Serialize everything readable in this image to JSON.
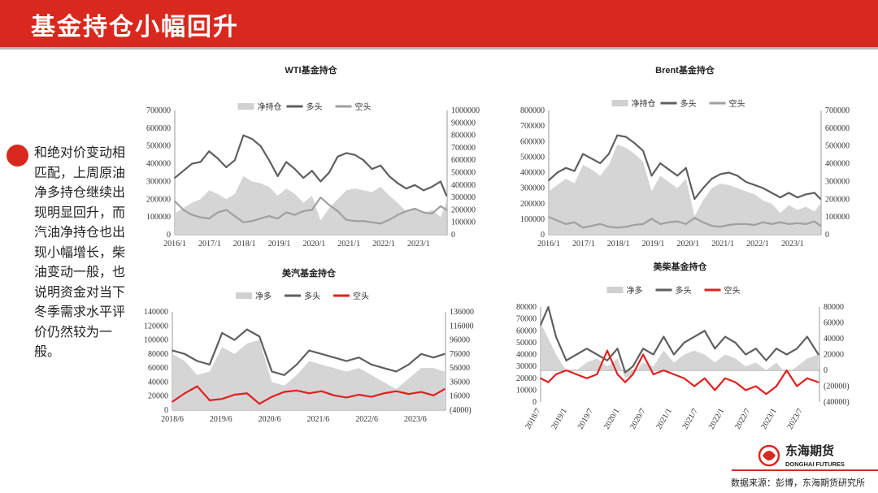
{
  "header": {
    "title": "基金持仓小幅回升"
  },
  "body": {
    "text": "和绝对价变动相匹配，上周原油净多持仓继续出现明显回升，而汽油净持仓也出现小幅增长，柴油变动一般，也说明资金对当下冬季需求水平评价仍然较为一般。"
  },
  "footer": {
    "source": "数据来源：彭博，东海期货研究所",
    "logo_cn": "东海期货",
    "logo_en": "DONGHAI FUTURES"
  },
  "colors": {
    "brand_red": "#d9281e",
    "net": "#d0d0d0",
    "long": "#5f5f5f",
    "short_gray": "#a0a0a0",
    "short_red": "#e02020"
  },
  "chart_data": [
    {
      "id": "wti",
      "type": "line",
      "title": "WTI基金持仓",
      "legend": [
        "净持仓",
        "多头",
        "空头"
      ],
      "x_ticks": [
        "2016/1",
        "2017/1",
        "2018/1",
        "2019/1",
        "2020/1",
        "2021/1",
        "2022/1",
        "2023/1"
      ],
      "x": [
        2016.0,
        2016.25,
        2016.5,
        2016.75,
        2017.0,
        2017.25,
        2017.5,
        2017.75,
        2018.0,
        2018.25,
        2018.5,
        2018.75,
        2019.0,
        2019.25,
        2019.5,
        2019.75,
        2020.0,
        2020.25,
        2020.5,
        2020.75,
        2021.0,
        2021.25,
        2021.5,
        2021.75,
        2022.0,
        2022.25,
        2022.5,
        2022.75,
        2023.0,
        2023.25,
        2023.5,
        2023.75,
        2023.92
      ],
      "ylim_left": [
        0,
        700000
      ],
      "yticks_left": [
        "0",
        "100000",
        "200000",
        "300000",
        "400000",
        "500000",
        "600000",
        "700000"
      ],
      "ylim_right": [
        0,
        1000000
      ],
      "yticks_right": [
        "0",
        "100000",
        "200000",
        "300000",
        "400000",
        "500000",
        "600000",
        "700000",
        "800000",
        "900000",
        "1000000"
      ],
      "series": [
        {
          "name": "净持仓",
          "kind": "area",
          "axis": "left",
          "values": [
            120000,
            150000,
            180000,
            200000,
            250000,
            230000,
            200000,
            230000,
            330000,
            300000,
            290000,
            270000,
            220000,
            260000,
            230000,
            180000,
            220000,
            80000,
            150000,
            200000,
            250000,
            260000,
            250000,
            240000,
            270000,
            220000,
            180000,
            130000,
            150000,
            120000,
            140000,
            100000,
            180000
          ]
        },
        {
          "name": "多头",
          "kind": "line",
          "axis": "left",
          "values": [
            320000,
            360000,
            400000,
            410000,
            470000,
            430000,
            380000,
            420000,
            560000,
            540000,
            500000,
            420000,
            330000,
            410000,
            370000,
            320000,
            360000,
            300000,
            350000,
            440000,
            460000,
            450000,
            420000,
            370000,
            390000,
            330000,
            290000,
            260000,
            280000,
            250000,
            270000,
            300000,
            220000
          ]
        },
        {
          "name": "空头",
          "kind": "line",
          "axis": "right",
          "values": [
            270000,
            200000,
            160000,
            140000,
            130000,
            180000,
            200000,
            150000,
            100000,
            110000,
            130000,
            150000,
            130000,
            180000,
            160000,
            190000,
            200000,
            300000,
            240000,
            190000,
            120000,
            110000,
            110000,
            100000,
            90000,
            120000,
            160000,
            190000,
            210000,
            180000,
            170000,
            230000,
            200000
          ]
        }
      ]
    },
    {
      "id": "brent",
      "type": "line",
      "title": "Brent基金持仓",
      "legend": [
        "净持仓",
        "多头",
        "空头"
      ],
      "x_ticks": [
        "2016/1",
        "2017/1",
        "2018/1",
        "2019/1",
        "2020/1",
        "2021/1",
        "2022/1",
        "2023/1"
      ],
      "x": [
        2016.0,
        2016.25,
        2016.5,
        2016.75,
        2017.0,
        2017.25,
        2017.5,
        2017.75,
        2018.0,
        2018.25,
        2018.5,
        2018.75,
        2019.0,
        2019.25,
        2019.5,
        2019.75,
        2020.0,
        2020.25,
        2020.5,
        2020.75,
        2021.0,
        2021.25,
        2021.5,
        2021.75,
        2022.0,
        2022.25,
        2022.5,
        2022.75,
        2023.0,
        2023.25,
        2023.5,
        2023.75,
        2023.92
      ],
      "ylim_left": [
        0,
        800000
      ],
      "yticks_left": [
        "0",
        "100000",
        "200000",
        "300000",
        "400000",
        "500000",
        "600000",
        "700000",
        "800000"
      ],
      "ylim_right": [
        0,
        700000
      ],
      "yticks_right": [
        "0",
        "100000",
        "200000",
        "300000",
        "400000",
        "500000",
        "600000",
        "700000"
      ],
      "series": [
        {
          "name": "净持仓",
          "kind": "area",
          "axis": "left",
          "values": [
            280000,
            320000,
            360000,
            330000,
            450000,
            420000,
            380000,
            450000,
            580000,
            560000,
            520000,
            470000,
            280000,
            380000,
            340000,
            300000,
            360000,
            120000,
            220000,
            300000,
            330000,
            320000,
            300000,
            280000,
            260000,
            220000,
            200000,
            140000,
            190000,
            160000,
            180000,
            150000,
            200000
          ]
        },
        {
          "name": "多头",
          "kind": "line",
          "axis": "left",
          "values": [
            350000,
            400000,
            430000,
            410000,
            520000,
            490000,
            460000,
            520000,
            640000,
            630000,
            590000,
            540000,
            380000,
            460000,
            420000,
            380000,
            430000,
            230000,
            300000,
            360000,
            390000,
            400000,
            380000,
            340000,
            320000,
            300000,
            270000,
            240000,
            270000,
            240000,
            260000,
            270000,
            230000
          ]
        },
        {
          "name": "空头",
          "kind": "line",
          "axis": "right",
          "values": [
            100000,
            80000,
            60000,
            70000,
            40000,
            50000,
            60000,
            45000,
            40000,
            45000,
            55000,
            60000,
            90000,
            60000,
            70000,
            75000,
            60000,
            95000,
            70000,
            50000,
            45000,
            55000,
            60000,
            60000,
            55000,
            70000,
            60000,
            70000,
            60000,
            65000,
            60000,
            75000,
            50000
          ]
        }
      ]
    },
    {
      "id": "gasoline",
      "type": "line",
      "title": "美汽基金持仓",
      "legend": [
        "净多",
        "多头",
        "空头"
      ],
      "x_ticks": [
        "2018/6",
        "2019/6",
        "2020/6",
        "2021/6",
        "2022/6",
        "2023/6"
      ],
      "x": [
        2018.45,
        2018.7,
        2018.95,
        2019.2,
        2019.45,
        2019.7,
        2019.95,
        2020.2,
        2020.45,
        2020.7,
        2020.95,
        2021.2,
        2021.45,
        2021.7,
        2021.95,
        2022.2,
        2022.45,
        2022.7,
        2022.95,
        2023.2,
        2023.45,
        2023.7,
        2023.92
      ],
      "ylim_left": [
        0,
        140000
      ],
      "yticks_left": [
        "0",
        "20000",
        "40000",
        "60000",
        "80000",
        "100000",
        "120000",
        "140000"
      ],
      "ylim_right": [
        -4000,
        136000
      ],
      "yticks_right": [
        "(4000)",
        "16000",
        "36000",
        "56000",
        "76000",
        "96000",
        "116000",
        "136000"
      ],
      "series": [
        {
          "name": "净多",
          "kind": "area",
          "axis": "left",
          "values": [
            80000,
            70000,
            50000,
            55000,
            90000,
            80000,
            95000,
            100000,
            40000,
            35000,
            50000,
            70000,
            65000,
            60000,
            55000,
            60000,
            50000,
            40000,
            30000,
            45000,
            60000,
            60000,
            55000
          ]
        },
        {
          "name": "多头",
          "kind": "line",
          "axis": "left",
          "values": [
            85000,
            80000,
            70000,
            65000,
            110000,
            100000,
            115000,
            105000,
            55000,
            50000,
            65000,
            85000,
            80000,
            75000,
            70000,
            75000,
            65000,
            60000,
            55000,
            65000,
            80000,
            75000,
            80000
          ]
        },
        {
          "name": "空头",
          "kind": "line",
          "axis": "right",
          "values": [
            8000,
            20000,
            30000,
            10000,
            12000,
            18000,
            20000,
            5000,
            15000,
            22000,
            24000,
            20000,
            23000,
            17000,
            14000,
            18000,
            15000,
            20000,
            23000,
            19000,
            22000,
            17000,
            26000
          ]
        }
      ]
    },
    {
      "id": "diesel",
      "type": "line",
      "title": "美柴基金持仓",
      "legend": [
        "净多",
        "多头",
        "空头"
      ],
      "x_ticks": [
        "2018/7",
        "2019/1",
        "2019/7",
        "2020/1",
        "2020/7",
        "2021/1",
        "2021/7",
        "2022/1",
        "2022/7",
        "2023/1",
        "2023/7"
      ],
      "x": [
        2018.5,
        2018.65,
        2018.8,
        2019.0,
        2019.2,
        2019.4,
        2019.6,
        2019.8,
        2020.0,
        2020.15,
        2020.3,
        2020.5,
        2020.7,
        2020.9,
        2021.1,
        2021.3,
        2021.5,
        2021.7,
        2021.9,
        2022.1,
        2022.3,
        2022.5,
        2022.7,
        2022.9,
        2023.1,
        2023.3,
        2023.5,
        2023.7,
        2023.92
      ],
      "ylim_left": [
        0,
        80000
      ],
      "yticks_left": [
        "0",
        "10000",
        "20000",
        "30000",
        "40000",
        "50000",
        "60000",
        "70000",
        "80000"
      ],
      "ylim_right": [
        -40000,
        80000
      ],
      "yticks_right": [
        "(40000)",
        "(20000)",
        "0",
        "20000",
        "40000",
        "60000",
        "80000"
      ],
      "series": [
        {
          "name": "净多",
          "kind": "area",
          "axis": "right",
          "values": [
            60000,
            40000,
            20000,
            0,
            0,
            10000,
            15000,
            5000,
            15000,
            -10000,
            -5000,
            10000,
            5000,
            25000,
            10000,
            20000,
            25000,
            20000,
            10000,
            20000,
            15000,
            5000,
            10000,
            0,
            10000,
            -5000,
            5000,
            15000,
            20000
          ]
        },
        {
          "name": "多头",
          "kind": "line",
          "axis": "left",
          "values": [
            65000,
            80000,
            55000,
            35000,
            40000,
            45000,
            40000,
            35000,
            45000,
            25000,
            30000,
            45000,
            40000,
            55000,
            40000,
            50000,
            55000,
            60000,
            45000,
            55000,
            50000,
            40000,
            45000,
            35000,
            45000,
            40000,
            45000,
            55000,
            40000
          ]
        },
        {
          "name": "空头",
          "kind": "line",
          "axis": "right",
          "values": [
            -10000,
            -15000,
            -5000,
            0,
            -5000,
            -10000,
            -5000,
            25000,
            -5000,
            -15000,
            -5000,
            20000,
            -5000,
            0,
            -5000,
            -10000,
            -20000,
            -10000,
            -25000,
            -10000,
            -15000,
            -25000,
            -20000,
            -30000,
            -20000,
            0,
            -20000,
            -10000,
            -15000
          ]
        }
      ]
    }
  ]
}
